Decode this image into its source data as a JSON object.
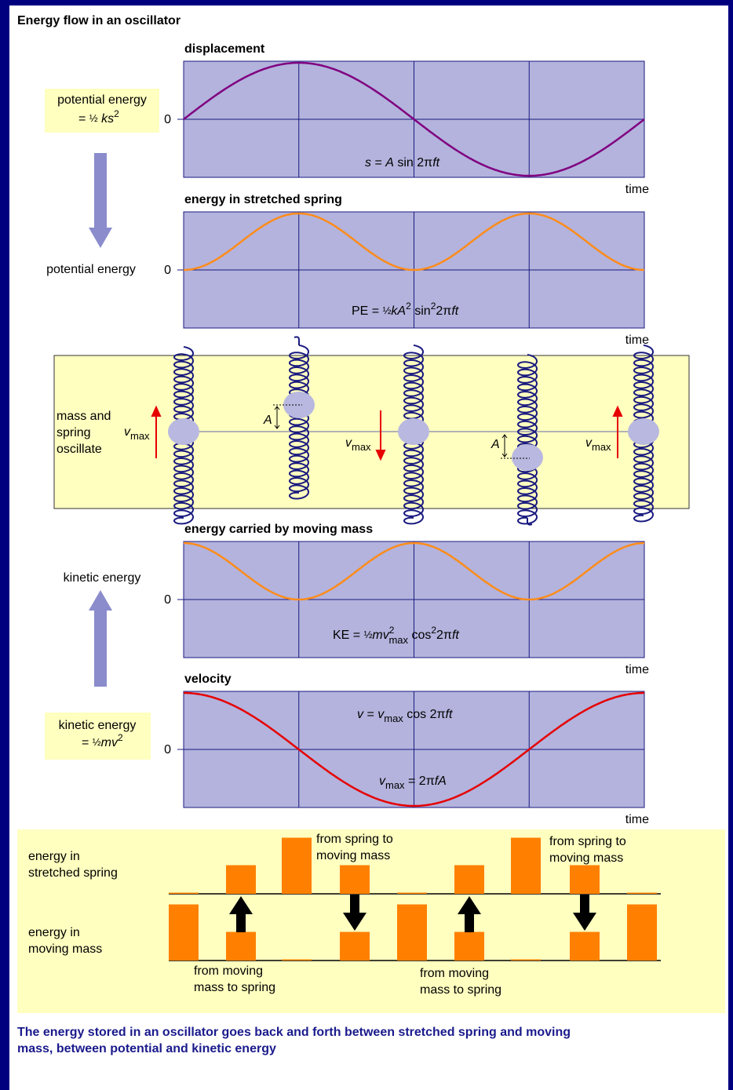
{
  "title": "Energy flow in an oscillator",
  "graphs": [
    {
      "title": "displacement",
      "zero": "0",
      "axis": "time",
      "formula": [
        "s",
        " = ",
        "A",
        " sin 2π",
        "ft"
      ]
    },
    {
      "title": "energy in stretched spring",
      "zero": "0",
      "axis": "time",
      "formula": [
        "PE = ",
        "½",
        "kA",
        "2",
        " sin",
        "2",
        "2π",
        "ft"
      ]
    },
    {
      "title": "energy carried by moving mass",
      "zero": "0",
      "axis": "time",
      "formula": [
        "KE = ",
        "½",
        "mv",
        "2",
        "max",
        " cos",
        "2",
        "2π",
        "ft"
      ]
    },
    {
      "title": "velocity",
      "zero": "0",
      "axis": "time",
      "formula": [
        "v",
        " = ",
        "v",
        "max",
        " cos 2π",
        "ft"
      ],
      "formula2": [
        "v",
        "max",
        " = 2π",
        "fA"
      ]
    }
  ],
  "pe_box": [
    "potential energy",
    "= ",
    "½",
    " ks",
    "2"
  ],
  "pe_label": "potential energy",
  "ke_label": "kinetic energy",
  "ke_box": [
    "kinetic energy",
    "= ",
    "½",
    "mv",
    "2"
  ],
  "springs": {
    "label": [
      "mass and",
      "spring",
      "oscillate"
    ],
    "vmax": [
      "v",
      "max"
    ],
    "amplitude": "A"
  },
  "bars": {
    "spring_label": [
      "energy in",
      "stretched spring"
    ],
    "mass_label": [
      "energy in",
      "moving mass"
    ],
    "to_mass": [
      "from spring to",
      "moving mass"
    ],
    "to_spring": [
      "from moving",
      "mass to spring"
    ],
    "spring": [
      0,
      0.5,
      1,
      0.5,
      0,
      0.5,
      1,
      0.5,
      0
    ],
    "mass": [
      1,
      0.5,
      0,
      0.5,
      1,
      0.5,
      0,
      0.5,
      1
    ]
  },
  "caption": [
    "The energy stored in an oscillator goes back and forth between stretched spring and moving",
    "mass, between potential and kinetic energy"
  ]
}
